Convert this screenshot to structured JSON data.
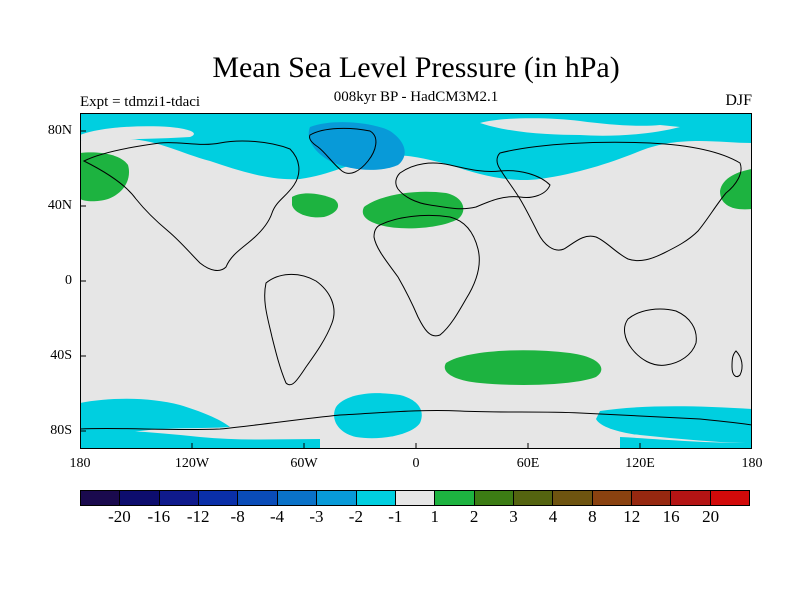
{
  "title": "Mean Sea Level Pressure (in hPa)",
  "subtitle": "008kyr BP - HadCM3M2.1",
  "experiment": "Expt = tdmzi1-tdaci",
  "season": "DJF",
  "lat_labels": [
    "80N",
    "40N",
    "0",
    "40S",
    "80S"
  ],
  "lon_labels": [
    "180",
    "120W",
    "60W",
    "0",
    "60E",
    "120E",
    "180"
  ],
  "colorbar": {
    "colors": [
      "#1a0a4e",
      "#0d0d6e",
      "#0f1a8c",
      "#0a2fa8",
      "#0a4cb8",
      "#0a72c8",
      "#089ad8",
      "#00cfe0",
      "#e6e6e6",
      "#1db340",
      "#3c7c14",
      "#546410",
      "#6e5410",
      "#8a4210",
      "#962810",
      "#b41414",
      "#d20a0a"
    ],
    "labels": [
      "-20",
      "-16",
      "-12",
      "-8",
      "-4",
      "-3",
      "-2",
      "-1",
      "1",
      "2",
      "3",
      "4",
      "8",
      "12",
      "16",
      "20"
    ]
  },
  "colors": {
    "neutral": "#e6e6e6",
    "light_cyan": "#00cfe0",
    "mid_blue": "#089ad8",
    "green": "#1db340"
  }
}
